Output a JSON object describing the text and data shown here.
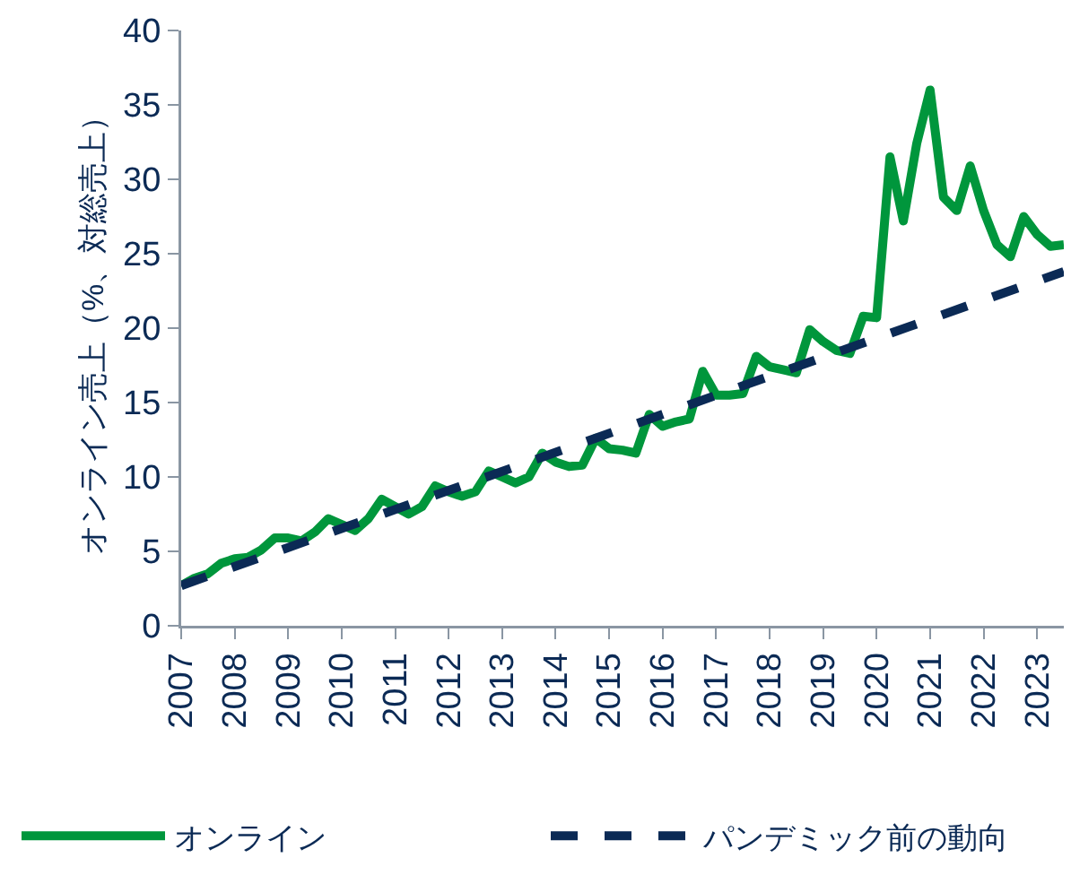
{
  "chart_data": {
    "type": "line",
    "ylabel": "オンライン売上（%、対総売上）",
    "xlim": [
      2007,
      2023.5
    ],
    "xticks": [
      2007,
      2008,
      2009,
      2010,
      2011,
      2012,
      2013,
      2014,
      2015,
      2016,
      2017,
      2018,
      2019,
      2020,
      2021,
      2022,
      2023
    ],
    "ylim": [
      0,
      40
    ],
    "yticks": [
      0,
      5,
      10,
      15,
      20,
      25,
      30,
      35,
      40
    ],
    "grid": false,
    "legend": "bottom",
    "marker": "none",
    "series": [
      {
        "name": "オンライン",
        "color": "#00963c",
        "line_style": "solid",
        "x": [
          2007,
          2007.25,
          2007.5,
          2007.75,
          2008,
          2008.25,
          2008.5,
          2008.75,
          2009,
          2009.25,
          2009.5,
          2009.75,
          2010,
          2010.25,
          2010.5,
          2010.75,
          2011,
          2011.25,
          2011.5,
          2011.75,
          2012,
          2012.25,
          2012.5,
          2012.75,
          2013,
          2013.25,
          2013.5,
          2013.75,
          2014,
          2014.25,
          2014.5,
          2014.75,
          2015,
          2015.25,
          2015.5,
          2015.75,
          2016,
          2016.25,
          2016.5,
          2016.75,
          2017,
          2017.25,
          2017.5,
          2017.75,
          2018,
          2018.25,
          2018.5,
          2018.75,
          2019,
          2019.25,
          2019.5,
          2019.75,
          2020,
          2020.25,
          2020.5,
          2020.75,
          2021,
          2021.25,
          2021.5,
          2021.75,
          2022,
          2022.25,
          2022.5,
          2022.75,
          2023,
          2023.25,
          2023.5
        ],
        "values": [
          2.7,
          3.2,
          3.5,
          4.2,
          4.5,
          4.6,
          5.1,
          5.9,
          5.9,
          5.7,
          6.3,
          7.2,
          6.8,
          6.4,
          7.2,
          8.5,
          8.0,
          7.5,
          8.0,
          9.4,
          9.0,
          8.7,
          9.0,
          10.4,
          10.0,
          9.6,
          10.0,
          11.6,
          11.0,
          10.7,
          10.8,
          12.6,
          11.9,
          11.8,
          11.6,
          14.2,
          13.4,
          13.7,
          13.9,
          17.1,
          15.5,
          15.5,
          15.6,
          18.1,
          17.4,
          17.2,
          17.0,
          19.9,
          19.1,
          18.5,
          18.3,
          20.8,
          20.7,
          31.5,
          27.2,
          32.4,
          36.0,
          28.8,
          27.9,
          30.9,
          27.9,
          25.6,
          24.8,
          27.5,
          26.3,
          25.5,
          25.6
        ]
      },
      {
        "name": "パンデミック前の動向",
        "color": "#0b2a55",
        "line_style": "dashed",
        "x": [
          2007,
          2023.5
        ],
        "values": [
          2.7,
          23.8
        ]
      }
    ]
  }
}
